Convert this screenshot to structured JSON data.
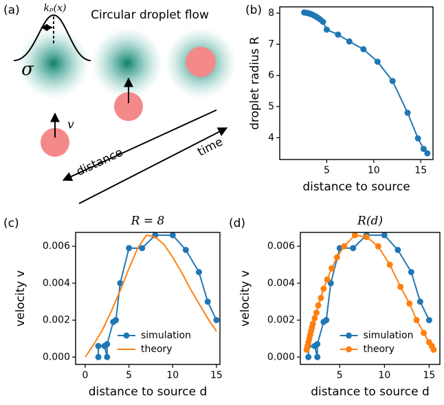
{
  "diagram": {
    "panel_label": "(a)",
    "title": "Circular droplet flow",
    "kernel_label": "kₚ(x)",
    "width_label": "σ",
    "velocity_label": "v",
    "distance_label": "distance",
    "time_label": "time"
  },
  "chart_data": [
    {
      "type": "line",
      "panel_label": "(b)",
      "xlabel": "distance to source",
      "ylabel": "droplet radius R",
      "x": [
        2.6,
        2.8,
        3.0,
        3.2,
        3.4,
        3.6,
        3.8,
        4.0,
        4.3,
        4.6,
        5.0,
        6.2,
        7.4,
        8.9,
        10.4,
        12.0,
        13.6,
        14.7,
        15.3,
        15.7
      ],
      "values": [
        8.02,
        8.01,
        8.0,
        7.98,
        7.96,
        7.93,
        7.9,
        7.86,
        7.8,
        7.72,
        7.47,
        7.31,
        7.09,
        6.84,
        6.44,
        5.82,
        4.8,
        3.98,
        3.64,
        3.5
      ],
      "color": "#1f77b4",
      "marker": true,
      "xlim": [
        0,
        16.3
      ],
      "ylim": [
        3.3,
        8.2
      ],
      "xticks": [
        5,
        10,
        15
      ],
      "yticks": [
        4,
        5,
        6,
        7,
        8
      ]
    },
    {
      "type": "line",
      "panel_label": "(c)",
      "title": "R = 8",
      "xlabel": "distance to source d",
      "ylabel": "velocity v",
      "legend": "lower center",
      "series": [
        {
          "name": "simulation",
          "color": "#1f77b4",
          "marker": true,
          "x": [
            1.5,
            1.5,
            2.2,
            2.5,
            2.5,
            3.2,
            3.5,
            4.0,
            5.0,
            6.5,
            8.0,
            10.0,
            11.5,
            13.0,
            14.0,
            15.0
          ],
          "values": [
            0.0,
            0.0006,
            0.0006,
            0.0,
            0.0007,
            0.0019,
            0.002,
            0.004,
            0.0059,
            0.0059,
            0.0066,
            0.0066,
            0.0058,
            0.0046,
            0.003,
            0.002
          ]
        },
        {
          "name": "theory",
          "color": "#ff7f0e",
          "marker": false,
          "x": [
            0,
            1,
            2,
            3,
            4,
            5,
            6,
            7,
            8,
            9,
            10,
            11,
            12,
            13,
            14,
            15
          ],
          "values": [
            0.0,
            0.0007,
            0.0015,
            0.0025,
            0.0036,
            0.0048,
            0.0059,
            0.0066,
            0.0065,
            0.0061,
            0.0054,
            0.0046,
            0.0037,
            0.0029,
            0.0021,
            0.0014
          ]
        }
      ],
      "xlim": [
        -1.1,
        15.4
      ],
      "ylim": [
        -0.0004,
        0.00675
      ],
      "xticks": [
        0,
        5,
        10,
        15
      ],
      "yticks": [
        {
          "value": 0,
          "label": "0.000"
        },
        0.002,
        0.004,
        0.006
      ]
    },
    {
      "type": "line",
      "panel_label": "(d)",
      "title": "R(d)",
      "xlabel": "distance to source d",
      "ylabel": "velocity v",
      "legend": "lower center",
      "series": [
        {
          "name": "simulation",
          "color": "#1f77b4",
          "marker": true,
          "x": [
            1.5,
            1.5,
            2.2,
            2.5,
            2.5,
            3.2,
            3.5,
            4.0,
            5.0,
            6.5,
            8.0,
            10.0,
            11.5,
            13.0,
            14.0,
            15.0
          ],
          "values": [
            0.0,
            0.0006,
            0.0006,
            0.0,
            0.0007,
            0.0019,
            0.002,
            0.004,
            0.0059,
            0.0059,
            0.0066,
            0.0066,
            0.0058,
            0.0046,
            0.003,
            0.002
          ]
        },
        {
          "name": "theory",
          "color": "#ff7f0e",
          "marker": true,
          "x": [
            1.3,
            1.4,
            1.5,
            1.6,
            1.7,
            1.8,
            1.9,
            2.0,
            2.2,
            2.4,
            2.6,
            2.9,
            3.2,
            3.6,
            4.1,
            4.7,
            5.5,
            6.7,
            8.0,
            9.3,
            10.6,
            11.8,
            12.8,
            13.6,
            14.4,
            15.0,
            15.3,
            15.5
          ],
          "values": [
            0.0004,
            0.0006,
            0.0008,
            0.001,
            0.0012,
            0.0014,
            0.0016,
            0.0018,
            0.0021,
            0.0024,
            0.0028,
            0.0032,
            0.0037,
            0.0042,
            0.0048,
            0.0054,
            0.006,
            0.0066,
            0.0065,
            0.006,
            0.005,
            0.0038,
            0.0029,
            0.002,
            0.0013,
            0.0008,
            0.0006,
            0.0004
          ]
        }
      ],
      "xlim": [
        0.6,
        16.2
      ],
      "ylim": [
        -0.0004,
        0.00675
      ],
      "xticks": [
        5,
        10,
        15
      ],
      "yticks": [
        {
          "value": 0,
          "label": "0.000"
        },
        0.002,
        0.004,
        0.006
      ]
    }
  ]
}
